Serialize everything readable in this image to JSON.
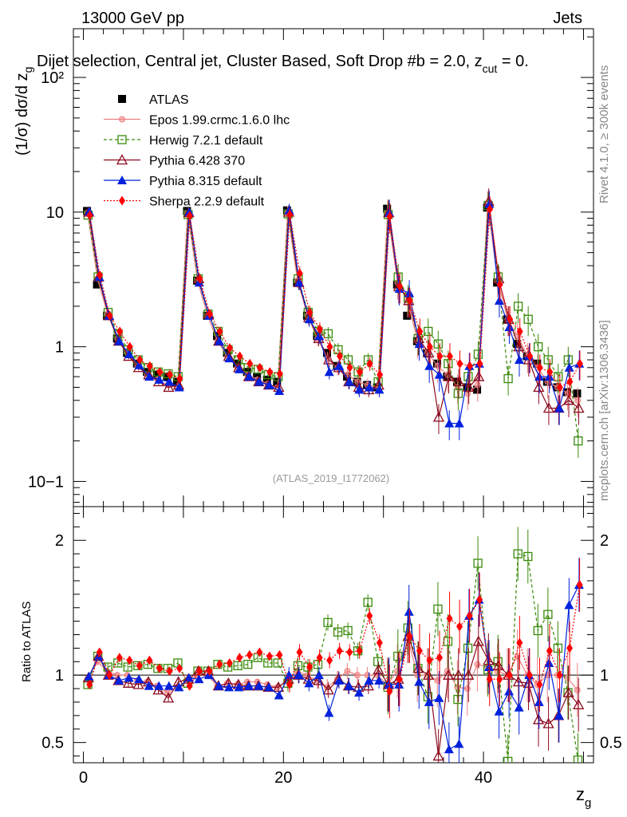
{
  "header": {
    "left": "13000 GeV pp",
    "right": "Jets",
    "title": "Dijet selection, Central jet, Cluster Based, Soft Drop #b = 2.0, z",
    "title_sub": "cut",
    "title_end": " = 0."
  },
  "side": {
    "rivet": "Rivet 4.1.0, ≥ 300k events",
    "mcplots": "mcplots.cern.ch [arXiv:1306.3436]"
  },
  "watermark": "(ATLAS_2019_I1772062)",
  "colors": {
    "atlas": "#000000",
    "epos": "#f08080",
    "herwig": "#3a8a0a",
    "pythia6": "#8b0a1e",
    "pythia8": "#0022dd",
    "sherpa": "#ff0000"
  },
  "chart_data": [
    {
      "type": "scatter",
      "panel": "main",
      "title": "Dijet selection, Central jet, Cluster Based, Soft Drop #b = 2.0, z_cut = 0.",
      "xlabel": "z_g",
      "ylabel": "(1/σ) dσ/d z_g",
      "yscale": "log",
      "ylim": [
        0.065,
        230
      ],
      "xlim": [
        -1,
        51
      ],
      "ytick_labels": [
        "10−1",
        "1",
        "10",
        "10²"
      ],
      "x": [
        0.5,
        1.5,
        2.5,
        3.5,
        4.5,
        5.5,
        6.5,
        7.5,
        8.5,
        9.5,
        10.5,
        11.5,
        12.5,
        13.5,
        14.5,
        15.5,
        16.5,
        17.5,
        18.5,
        19.5,
        20.5,
        21.5,
        22.5,
        23.5,
        24.5,
        25.5,
        26.5,
        27.5,
        28.5,
        29.5,
        30.5,
        31.5,
        32.5,
        33.5,
        34.5,
        35.5,
        36.5,
        37.5,
        38.5,
        39.5,
        40.5,
        41.5,
        42.5,
        43.5,
        44.5,
        45.5,
        46.5,
        47.5,
        48.5,
        49.5
      ],
      "series": [
        {
          "name": "ATLAS",
          "values": [
            10.2,
            2.9,
            1.7,
            1.15,
            0.9,
            0.75,
            0.65,
            0.62,
            0.6,
            0.55,
            10.2,
            3.1,
            1.7,
            1.2,
            0.9,
            0.75,
            0.65,
            0.6,
            0.57,
            0.55,
            10.3,
            3.0,
            1.7,
            1.2,
            0.9,
            0.72,
            0.6,
            0.55,
            0.52,
            0.5,
            10.6,
            2.9,
            1.7,
            1.1,
            0.9,
            0.75,
            0.6,
            0.55,
            0.5,
            0.48,
            10.8,
            3.0,
            1.6,
            1.05,
            0.85,
            0.75,
            0.55,
            0.5,
            0.46,
            0.45
          ]
        },
        {
          "name": "Epos 1.99.crmc.1.6.0 lhc",
          "values": [
            9.9,
            3.2,
            1.75,
            1.15,
            0.9,
            0.72,
            0.62,
            0.57,
            0.52,
            0.5,
            9.8,
            3.1,
            1.7,
            1.1,
            0.85,
            0.7,
            0.62,
            0.57,
            0.53,
            0.5,
            9.9,
            3.1,
            1.7,
            1.15,
            0.82,
            0.7,
            0.62,
            0.55,
            0.52,
            0.5,
            9.9,
            3.0,
            2.2,
            1.1,
            0.9,
            0.72,
            0.62,
            0.5,
            0.45,
            0.52,
            11.5,
            3.1,
            1.6,
            1.2,
            0.85,
            0.7,
            0.55,
            0.5,
            0.45,
            0.4
          ]
        },
        {
          "name": "Herwig 7.2.1 default",
          "values": [
            9.5,
            3.3,
            1.8,
            1.25,
            0.95,
            0.8,
            0.7,
            0.65,
            0.63,
            0.6,
            9.6,
            3.2,
            1.75,
            1.3,
            0.95,
            0.8,
            0.7,
            0.68,
            0.62,
            0.6,
            9.7,
            3.2,
            1.8,
            1.3,
            1.25,
            0.95,
            0.8,
            0.65,
            0.8,
            0.55,
            9.6,
            3.3,
            2.3,
            1.15,
            1.3,
            1.05,
            0.75,
            0.45,
            0.6,
            0.88,
            11.2,
            3.3,
            0.58,
            2.0,
            1.6,
            1.0,
            0.8,
            0.6,
            0.8,
            0.2
          ]
        },
        {
          "name": "Pythia 6.428 370",
          "values": [
            10.0,
            3.3,
            1.7,
            1.1,
            0.85,
            0.7,
            0.62,
            0.55,
            0.5,
            0.52,
            9.9,
            3.2,
            1.75,
            1.1,
            0.85,
            0.7,
            0.6,
            0.55,
            0.52,
            0.5,
            10.0,
            3.0,
            1.65,
            1.15,
            0.8,
            0.7,
            0.55,
            0.5,
            0.48,
            0.52,
            9.9,
            2.8,
            2.2,
            1.15,
            0.9,
            0.3,
            0.6,
            0.55,
            0.5,
            0.6,
            12.0,
            3.2,
            1.6,
            1.0,
            0.8,
            0.5,
            0.35,
            0.35,
            0.4,
            0.35
          ]
        },
        {
          "name": "Pythia 8.315 default",
          "values": [
            10.1,
            3.3,
            1.7,
            1.1,
            0.88,
            0.73,
            0.6,
            0.57,
            0.55,
            0.5,
            10.0,
            3.0,
            1.7,
            1.1,
            0.82,
            0.68,
            0.6,
            0.55,
            0.52,
            0.47,
            10.3,
            3.0,
            1.6,
            1.2,
            0.65,
            0.72,
            0.55,
            0.48,
            0.5,
            0.48,
            9.9,
            2.7,
            2.5,
            1.05,
            0.72,
            0.62,
            0.27,
            0.27,
            0.72,
            0.75,
            11.5,
            2.2,
            1.4,
            0.8,
            0.85,
            0.6,
            0.6,
            0.35,
            0.7,
            0.75
          ]
        },
        {
          "name": "Sherpa 2.2.9 default",
          "values": [
            9.5,
            3.4,
            1.7,
            1.3,
            1.0,
            0.8,
            0.72,
            0.65,
            0.62,
            0.58,
            9.4,
            3.2,
            1.75,
            1.3,
            0.98,
            0.85,
            0.75,
            0.7,
            0.65,
            0.63,
            9.6,
            3.5,
            1.8,
            1.35,
            1.0,
            0.85,
            0.7,
            0.65,
            0.75,
            0.62,
            9.3,
            2.8,
            2.2,
            1.3,
            1.0,
            0.85,
            0.85,
            0.75,
            0.72,
            0.75,
            10.5,
            2.9,
            1.6,
            1.3,
            0.85,
            0.7,
            0.65,
            0.5,
            0.55,
            0.75
          ]
        }
      ]
    },
    {
      "type": "scatter",
      "panel": "ratio",
      "ylabel": "Ratio to ATLAS",
      "xlabel": "z_g",
      "ylim": [
        0.35,
        2.25
      ],
      "xlim": [
        -1,
        51
      ],
      "ytick_labels": [
        "0.5",
        "1",
        "2"
      ],
      "xtick_labels": [
        "0",
        "20",
        "40"
      ],
      "x": [
        0.5,
        1.5,
        2.5,
        3.5,
        4.5,
        5.5,
        6.5,
        7.5,
        8.5,
        9.5,
        10.5,
        11.5,
        12.5,
        13.5,
        14.5,
        15.5,
        16.5,
        17.5,
        18.5,
        19.5,
        20.5,
        21.5,
        22.5,
        23.5,
        24.5,
        25.5,
        26.5,
        27.5,
        28.5,
        29.5,
        30.5,
        31.5,
        32.5,
        33.5,
        34.5,
        35.5,
        36.5,
        37.5,
        38.5,
        39.5,
        40.5,
        41.5,
        42.5,
        43.5,
        44.5,
        45.5,
        46.5,
        47.5,
        48.5,
        49.5
      ],
      "series": [
        {
          "name": "Epos 1.99.crmc.1.6.0 lhc",
          "values": [
            0.97,
            1.1,
            1.03,
            1.0,
            1.0,
            0.96,
            0.95,
            0.92,
            0.87,
            0.91,
            0.96,
            1.0,
            1.0,
            0.92,
            0.94,
            0.93,
            0.95,
            0.95,
            0.93,
            0.91,
            0.96,
            1.03,
            1.0,
            0.96,
            0.91,
            0.97,
            1.03,
            1.0,
            1.0,
            1.0,
            0.93,
            1.03,
            1.29,
            1.0,
            1.0,
            0.96,
            1.03,
            0.91,
            0.9,
            1.08,
            1.06,
            1.03,
            1.0,
            1.14,
            1.0,
            0.93,
            1.0,
            1.0,
            0.98,
            0.89
          ]
        },
        {
          "name": "Herwig 7.2.1 default",
          "values": [
            0.93,
            1.14,
            1.06,
            1.09,
            1.06,
            1.07,
            1.08,
            1.05,
            1.05,
            1.09,
            0.94,
            1.03,
            1.03,
            1.08,
            1.06,
            1.07,
            1.08,
            1.13,
            1.09,
            1.09,
            0.94,
            1.07,
            1.06,
            1.08,
            1.39,
            1.32,
            1.33,
            1.18,
            1.54,
            1.1,
            0.91,
            1.14,
            1.35,
            1.05,
            0.84,
            1.49,
            1.25,
            0.82,
            1.2,
            1.83,
            1.04,
            1.1,
            0.36,
            1.9,
            1.88,
            1.33,
            1.45,
            1.2,
            0.87,
            0.37
          ]
        },
        {
          "name": "Pythia 6.428 370",
          "values": [
            0.98,
            1.14,
            1.0,
            0.96,
            0.94,
            0.93,
            0.95,
            0.89,
            0.83,
            0.95,
            0.97,
            1.03,
            1.03,
            0.92,
            0.94,
            0.93,
            0.92,
            0.92,
            0.91,
            0.91,
            0.97,
            1.0,
            0.97,
            0.96,
            0.89,
            0.97,
            0.92,
            0.91,
            0.92,
            1.04,
            0.93,
            0.97,
            1.29,
            1.05,
            1.0,
            0.4,
            1.0,
            1.0,
            1.0,
            1.25,
            1.11,
            1.07,
            1.0,
            0.95,
            0.94,
            0.67,
            0.64,
            0.7,
            0.87,
            0.78
          ]
        },
        {
          "name": "Pythia 8.315 default",
          "values": [
            0.99,
            1.14,
            1.0,
            0.96,
            0.98,
            0.97,
            0.92,
            0.92,
            0.92,
            0.91,
            0.98,
            0.97,
            1.0,
            0.92,
            0.91,
            0.91,
            0.92,
            0.92,
            0.91,
            0.85,
            1.0,
            1.0,
            0.94,
            1.0,
            0.72,
            0.96,
            0.92,
            0.87,
            0.96,
            0.96,
            0.93,
            0.93,
            1.47,
            0.95,
            0.8,
            0.83,
            0.45,
            0.49,
            1.44,
            1.56,
            1.06,
            0.73,
            0.88,
            0.76,
            1.0,
            0.8,
            1.09,
            0.7,
            1.52,
            1.67
          ]
        },
        {
          "name": "Sherpa 2.2.9 default",
          "values": [
            0.93,
            1.17,
            1.0,
            1.13,
            1.11,
            1.07,
            1.11,
            1.05,
            1.03,
            1.05,
            0.92,
            1.03,
            1.03,
            1.08,
            1.09,
            1.13,
            1.15,
            1.17,
            1.14,
            1.15,
            0.93,
            1.17,
            1.06,
            1.13,
            1.11,
            1.18,
            1.17,
            1.18,
            1.44,
            1.24,
            0.88,
            0.97,
            1.29,
            1.18,
            1.11,
            1.13,
            1.42,
            1.36,
            1.44,
            1.56,
            0.97,
            0.97,
            1.0,
            1.24,
            1.0,
            0.93,
            1.18,
            1.0,
            1.2,
            1.67
          ]
        }
      ]
    }
  ]
}
